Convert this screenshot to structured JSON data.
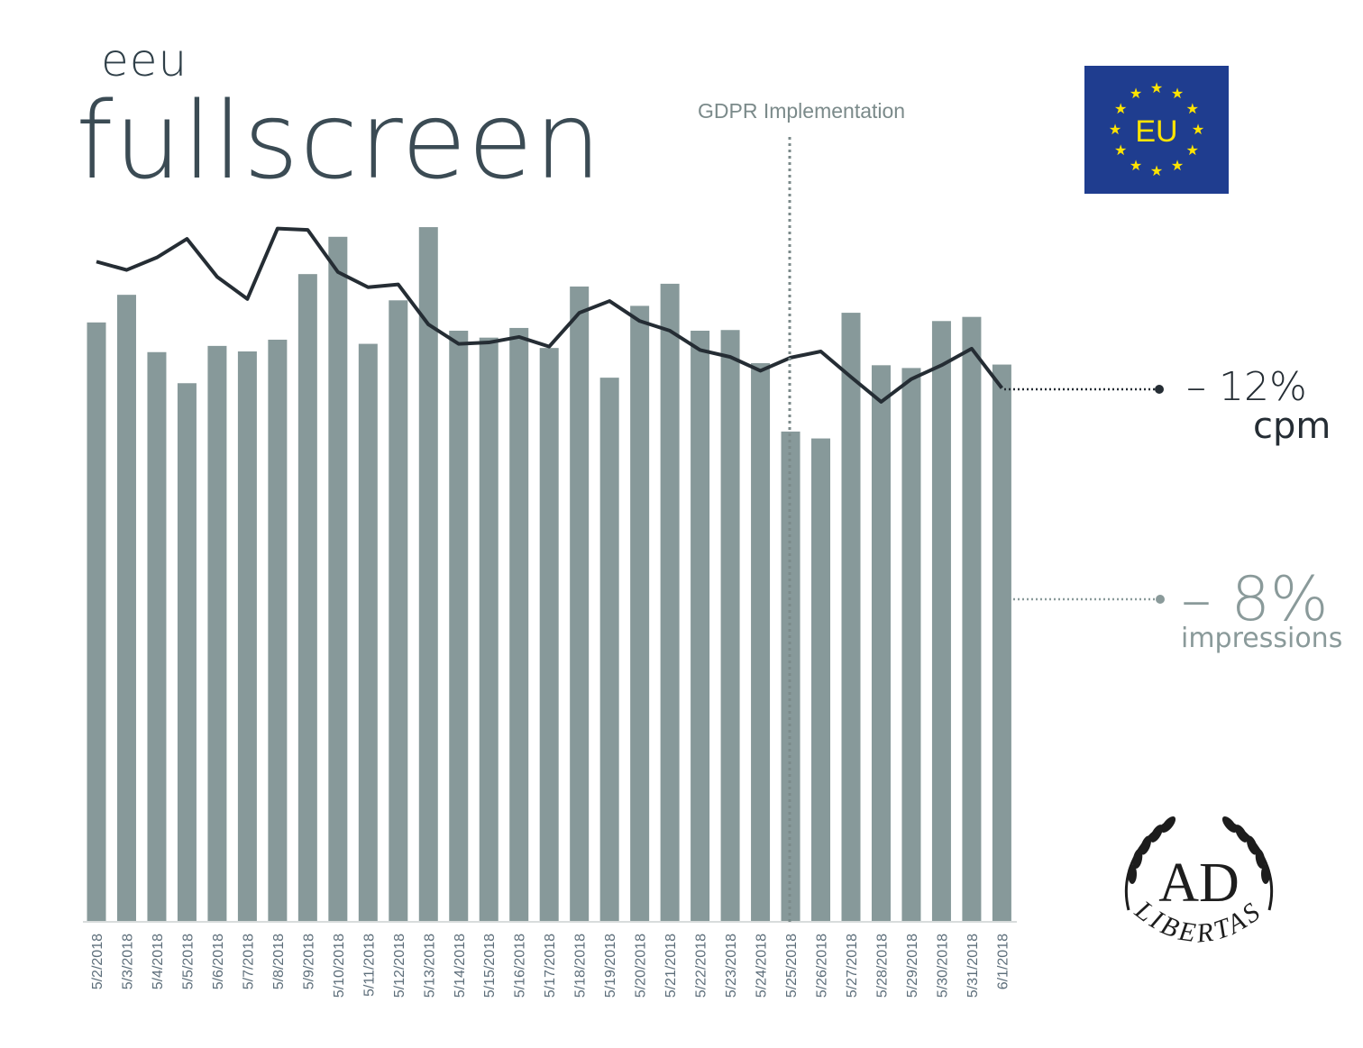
{
  "header": {
    "subtitle": "eeu",
    "title": "fullscreen"
  },
  "annotation": {
    "gdpr_label": "GDPR Implementation",
    "gdpr_date": "5/25/2018"
  },
  "eu_flag": {
    "text": "EU",
    "icon": "eu-flag-icon",
    "background": "#1f3d8f",
    "star_color": "#ffe400"
  },
  "callouts": {
    "cpm_value": "– 12%",
    "cpm_label": "cpm",
    "impressions_value": "– 8%",
    "impressions_label": "impressions"
  },
  "logo": {
    "text_main": "AD",
    "text_arc": "LIBERTAS",
    "icon": "laurel-wreath-icon"
  },
  "colors": {
    "bars": "#87999a",
    "line": "#252d34",
    "callout_impressions": "#8a9a9a",
    "gdpr_line": "#7b8a8a"
  },
  "chart_data": {
    "type": "bar+line",
    "categories": [
      "5/2/2018",
      "5/3/2018",
      "5/4/2018",
      "5/5/2018",
      "5/6/2018",
      "5/7/2018",
      "5/8/2018",
      "5/9/2018",
      "5/10/2018",
      "5/11/2018",
      "5/12/2018",
      "5/13/2018",
      "5/14/2018",
      "5/15/2018",
      "5/16/2018",
      "5/17/2018",
      "5/18/2018",
      "5/19/2018",
      "5/20/2018",
      "5/21/2018",
      "5/22/2018",
      "5/23/2018",
      "5/24/2018",
      "5/25/2018",
      "5/26/2018",
      "5/27/2018",
      "5/28/2018",
      "5/29/2018",
      "5/30/2018",
      "5/31/2018",
      "6/1/2018"
    ],
    "series": [
      {
        "type": "bar",
        "values": [
          86.8,
          90.8,
          82.5,
          78.0,
          83.4,
          82.6,
          84.3,
          93.8,
          99.2,
          83.7,
          90.0,
          100.6,
          85.6,
          84.6,
          86.0,
          83.1,
          92.0,
          78.8,
          89.2,
          92.4,
          85.6,
          85.7,
          80.9,
          71.0,
          70.0,
          88.2,
          80.6,
          80.2,
          87.0,
          87.6,
          80.7
        ]
      },
      {
        "type": "line",
        "values": [
          95.6,
          94.4,
          96.2,
          98.9,
          93.4,
          90.2,
          100.4,
          100.2,
          94.1,
          91.9,
          92.3,
          86.5,
          83.7,
          83.9,
          84.7,
          83.3,
          88.2,
          89.9,
          87.0,
          85.6,
          82.8,
          81.8,
          79.8,
          81.7,
          82.6,
          78.9,
          75.3,
          78.6,
          80.6,
          83.0,
          77.3
        ]
      }
    ],
    "ylim": [
      0,
      104
    ],
    "grid": false,
    "legend": "none"
  }
}
